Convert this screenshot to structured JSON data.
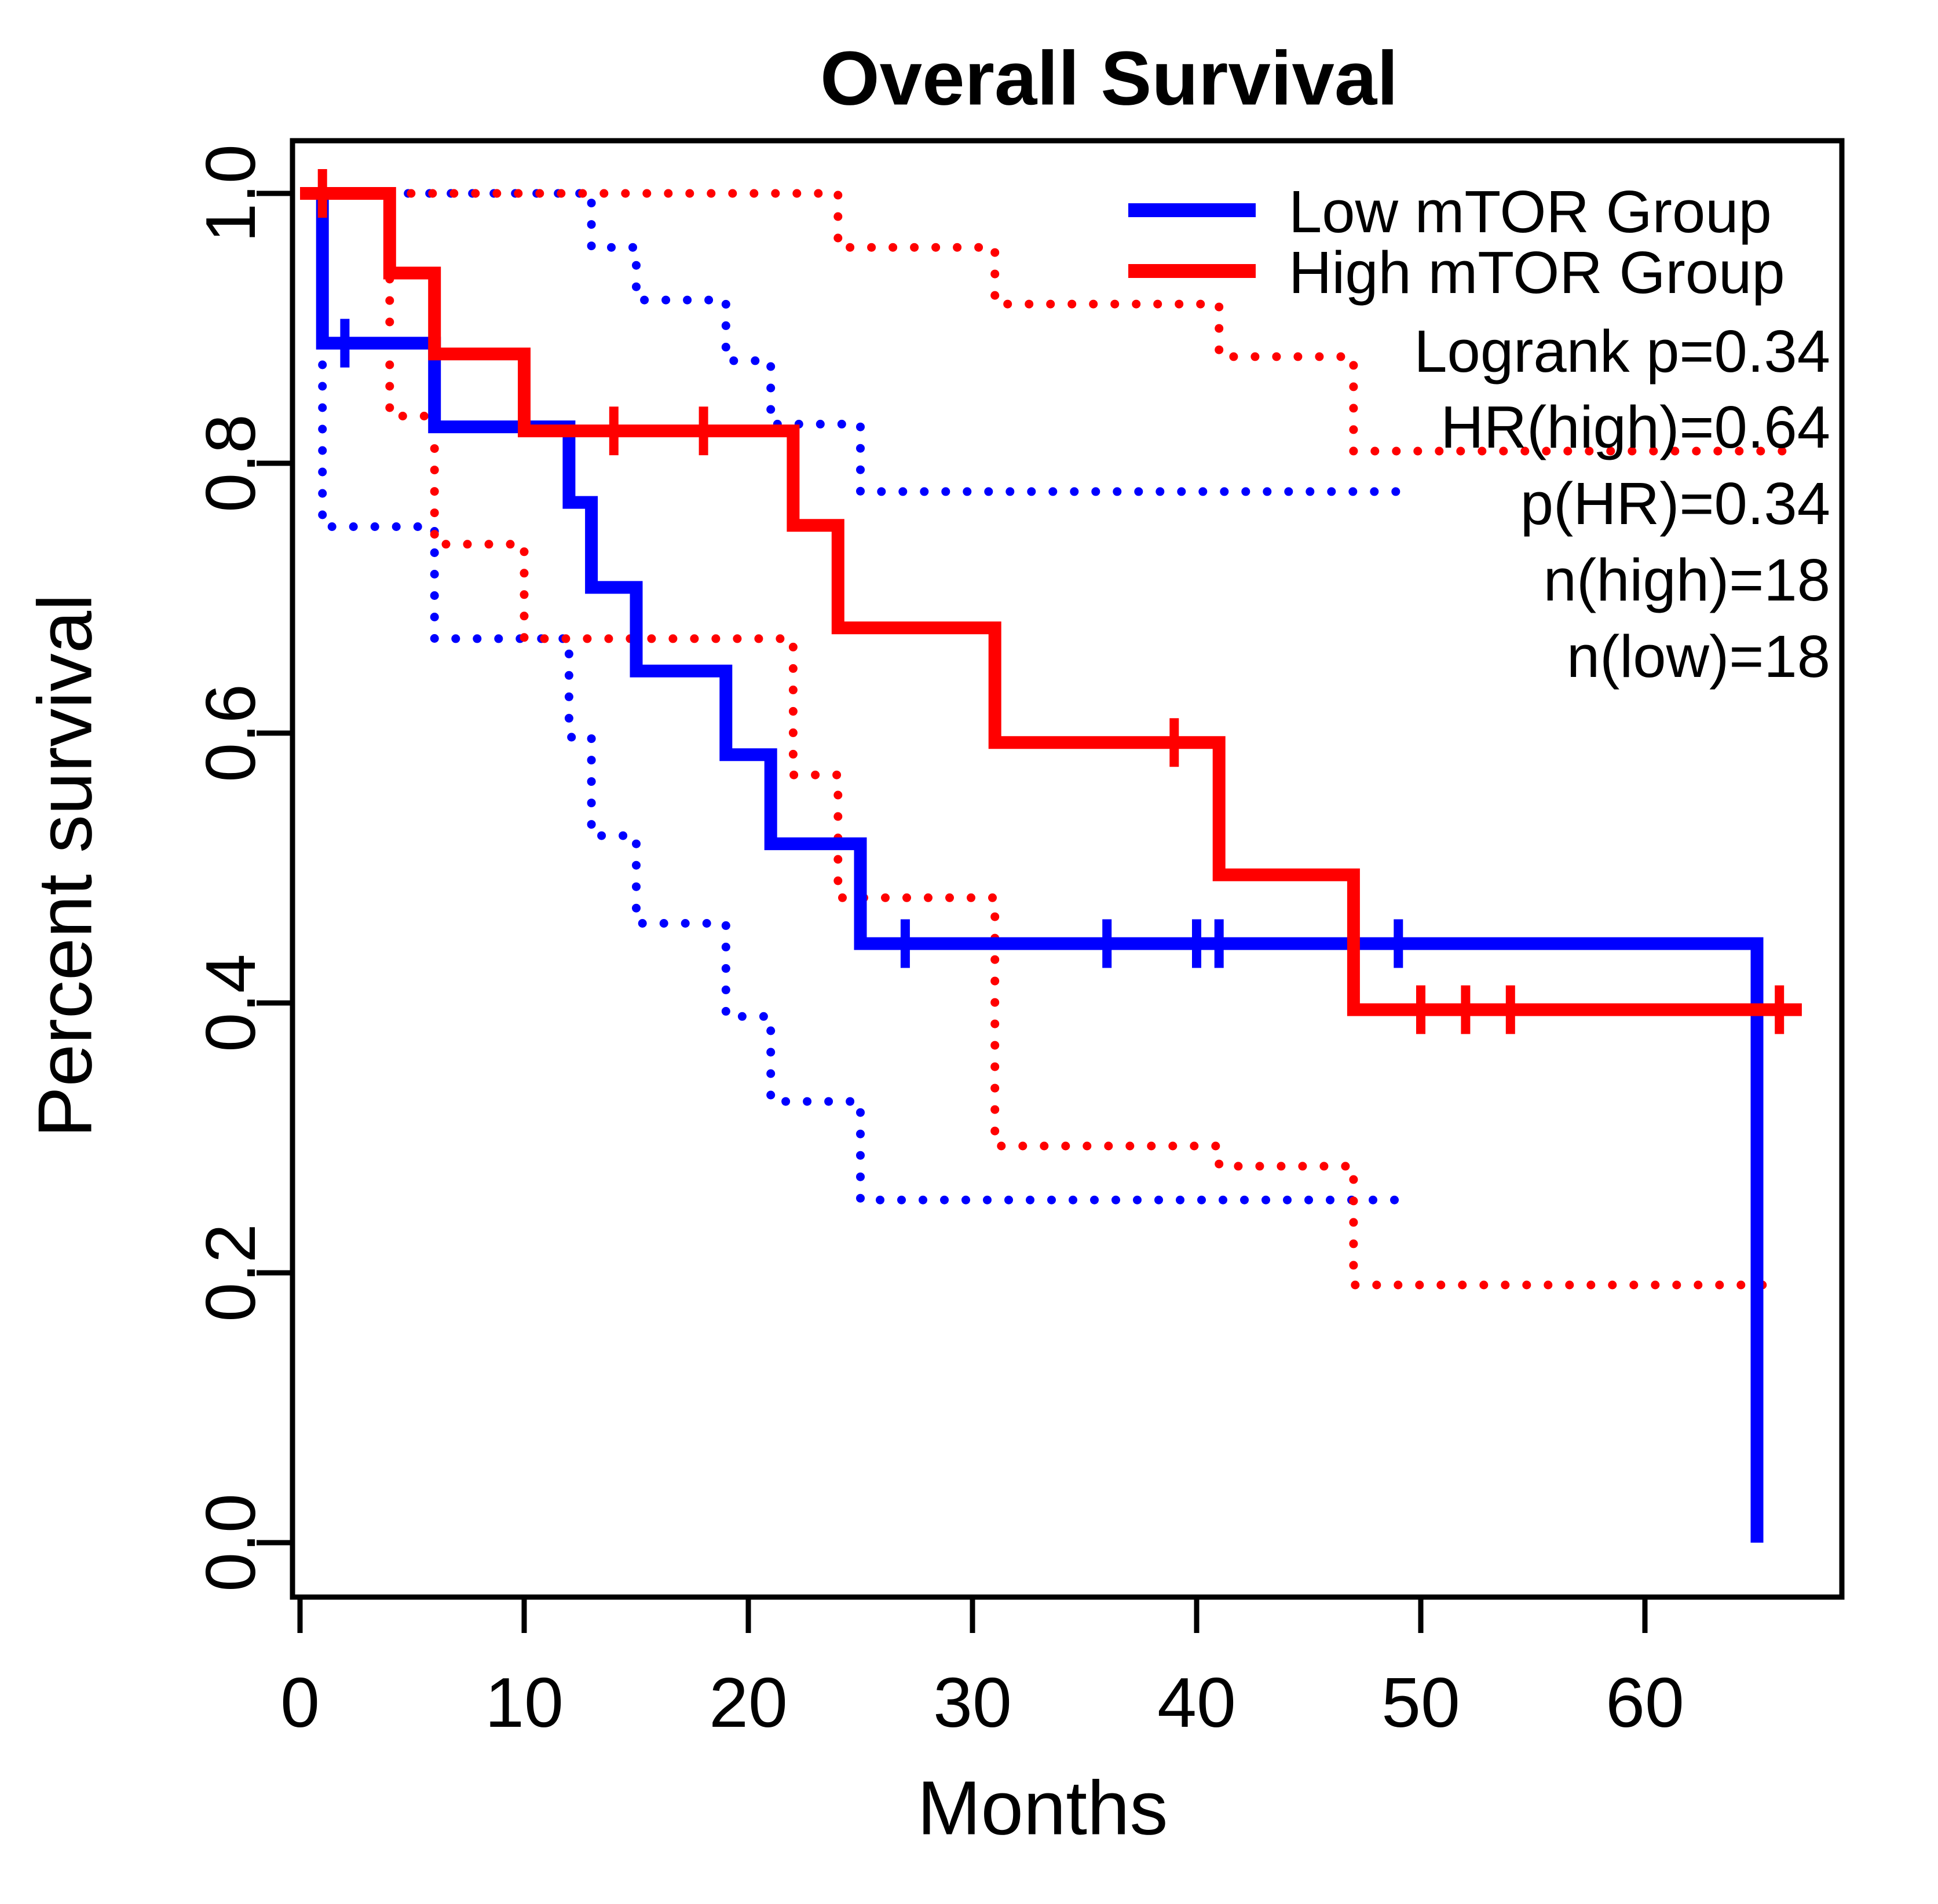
{
  "chart_data": {
    "type": "line",
    "subtype": "kaplan-meier-step",
    "title": "Overall Survival",
    "xlabel": "Months",
    "ylabel": "Percent survival",
    "xlim": [
      0,
      69
    ],
    "ylim": [
      0,
      1.04
    ],
    "xticks": [
      "0",
      "10",
      "20",
      "30",
      "40",
      "50",
      "60"
    ],
    "xtick_values": [
      0,
      10,
      20,
      30,
      40,
      50,
      60
    ],
    "yticks": [
      "0.0",
      "0.2",
      "0.4",
      "0.6",
      "0.8",
      "1.0"
    ],
    "ytick_values": [
      0.0,
      0.2,
      0.4,
      0.6,
      0.8,
      1.0
    ],
    "grid": false,
    "legend_position": "top-right",
    "series": [
      {
        "name": "Low mTOR Group",
        "color": "#0000ff",
        "line": "solid",
        "points": [
          [
            0,
            1.0
          ],
          [
            1,
            1.0
          ],
          [
            1,
            0.889
          ],
          [
            6,
            0.889
          ],
          [
            6,
            0.827
          ],
          [
            12,
            0.827
          ],
          [
            12,
            0.771
          ],
          [
            13,
            0.771
          ],
          [
            13,
            0.708
          ],
          [
            15,
            0.708
          ],
          [
            15,
            0.646
          ],
          [
            19,
            0.646
          ],
          [
            19,
            0.584
          ],
          [
            21,
            0.584
          ],
          [
            21,
            0.518
          ],
          [
            25,
            0.518
          ],
          [
            25,
            0.444
          ],
          [
            65,
            0.444
          ],
          [
            65,
            0.0
          ]
        ],
        "censor_marks": [
          [
            2,
            0.889
          ],
          [
            27,
            0.444
          ],
          [
            36,
            0.444
          ],
          [
            40,
            0.444
          ],
          [
            41,
            0.444
          ],
          [
            49,
            0.444
          ]
        ]
      },
      {
        "name": "High mTOR Group",
        "color": "#ff0000",
        "line": "solid",
        "points": [
          [
            0,
            1.0
          ],
          [
            4,
            1.0
          ],
          [
            4,
            0.941
          ],
          [
            6,
            0.941
          ],
          [
            6,
            0.881
          ],
          [
            10,
            0.881
          ],
          [
            10,
            0.824
          ],
          [
            22,
            0.824
          ],
          [
            22,
            0.754
          ],
          [
            24,
            0.754
          ],
          [
            24,
            0.678
          ],
          [
            31,
            0.678
          ],
          [
            31,
            0.593
          ],
          [
            41,
            0.593
          ],
          [
            41,
            0.495
          ],
          [
            47,
            0.495
          ],
          [
            47,
            0.395
          ],
          [
            67,
            0.395
          ]
        ],
        "censor_marks": [
          [
            1,
            1.0
          ],
          [
            14,
            0.824
          ],
          [
            18,
            0.824
          ],
          [
            39,
            0.593
          ],
          [
            50,
            0.395
          ],
          [
            52,
            0.395
          ],
          [
            54,
            0.395
          ],
          [
            66,
            0.395
          ]
        ]
      },
      {
        "name": "Low mTOR 95% CI upper",
        "color": "#0000ff",
        "line": "dotted",
        "points": [
          [
            1,
            1.0
          ],
          [
            13,
            1.0
          ],
          [
            13,
            0.96
          ],
          [
            15,
            0.96
          ],
          [
            15,
            0.921
          ],
          [
            19,
            0.921
          ],
          [
            19,
            0.876
          ],
          [
            21,
            0.876
          ],
          [
            21,
            0.829
          ],
          [
            25,
            0.829
          ],
          [
            25,
            0.779
          ],
          [
            49,
            0.779
          ]
        ],
        "censor_marks": []
      },
      {
        "name": "Low mTOR 95% CI lower",
        "color": "#0000ff",
        "line": "dotted",
        "points": [
          [
            1,
            1.0
          ],
          [
            1,
            0.753
          ],
          [
            6,
            0.753
          ],
          [
            6,
            0.67
          ],
          [
            12,
            0.67
          ],
          [
            12,
            0.597
          ],
          [
            13,
            0.597
          ],
          [
            13,
            0.524
          ],
          [
            15,
            0.524
          ],
          [
            15,
            0.459
          ],
          [
            19,
            0.459
          ],
          [
            19,
            0.39
          ],
          [
            21,
            0.39
          ],
          [
            21,
            0.327
          ],
          [
            25,
            0.327
          ],
          [
            25,
            0.254
          ],
          [
            49,
            0.254
          ]
        ],
        "censor_marks": []
      },
      {
        "name": "High mTOR 95% CI upper",
        "color": "#ff0000",
        "line": "dotted",
        "points": [
          [
            4,
            1.0
          ],
          [
            24,
            1.0
          ],
          [
            24,
            0.96
          ],
          [
            31,
            0.96
          ],
          [
            31,
            0.918
          ],
          [
            41,
            0.918
          ],
          [
            41,
            0.879
          ],
          [
            47,
            0.879
          ],
          [
            47,
            0.809
          ],
          [
            67,
            0.809
          ]
        ],
        "censor_marks": []
      },
      {
        "name": "High mTOR 95% CI lower",
        "color": "#ff0000",
        "line": "dotted",
        "points": [
          [
            4,
            1.0
          ],
          [
            4,
            0.835
          ],
          [
            6,
            0.835
          ],
          [
            6,
            0.74
          ],
          [
            10,
            0.74
          ],
          [
            10,
            0.67
          ],
          [
            22,
            0.67
          ],
          [
            22,
            0.569
          ],
          [
            24,
            0.569
          ],
          [
            24,
            0.478
          ],
          [
            31,
            0.478
          ],
          [
            31,
            0.294
          ],
          [
            41,
            0.294
          ],
          [
            41,
            0.279
          ],
          [
            47,
            0.279
          ],
          [
            47,
            0.191
          ],
          [
            66,
            0.191
          ]
        ],
        "censor_marks": []
      }
    ],
    "legend_entries": [
      {
        "label": "Low mTOR Group",
        "color": "#0000ff"
      },
      {
        "label": "High mTOR Group",
        "color": "#ff0000"
      }
    ],
    "annotations": [
      "Logrank p=0.34",
      "HR(high)=0.64",
      "p(HR)=0.34",
      "n(high)=18",
      "n(low)=18"
    ]
  }
}
